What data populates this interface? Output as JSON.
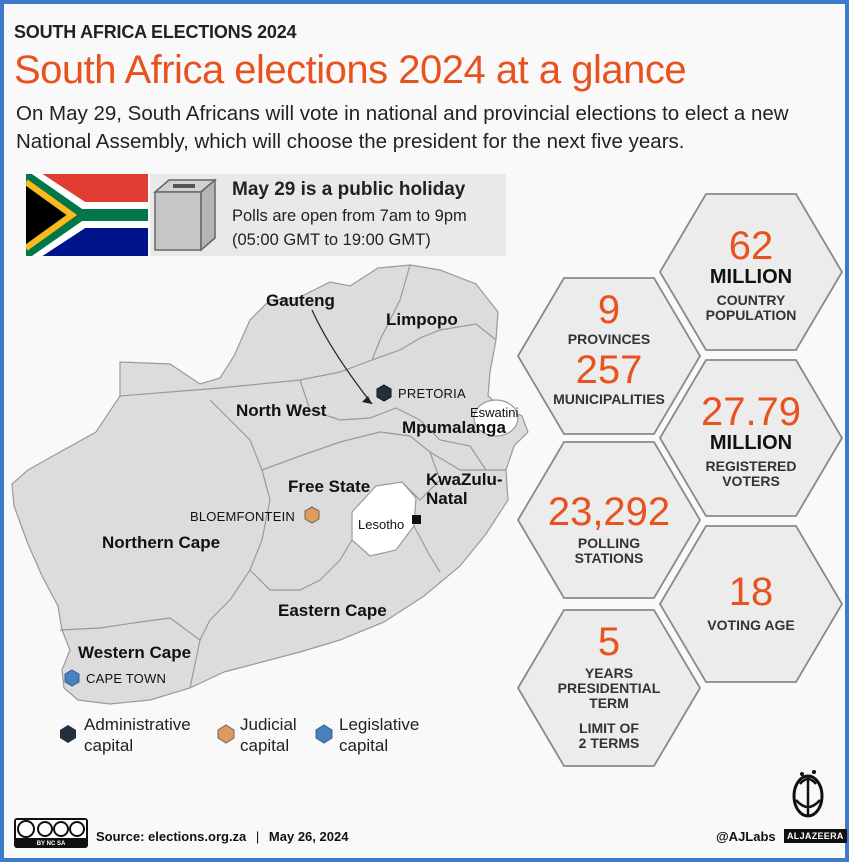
{
  "header": {
    "kicker": "SOUTH AFRICA ELECTIONS 2024",
    "title": "South Africa elections 2024 at a glance",
    "subtitle": "On May 29, South Africans will vote in national and provincial elections to elect a new National Assembly, which will choose the president for the next five years."
  },
  "holiday": {
    "title": "May 29 is a public holiday",
    "line1": "Polls are open from 7am to 9pm",
    "line2": "(05:00 GMT to 19:00 GMT)"
  },
  "map": {
    "provinces": {
      "gauteng": "Gauteng",
      "limpopo": "Limpopo",
      "north_west": "North West",
      "mpumalanga": "Mpumalanga",
      "free_state": "Free State",
      "kwazulu_natal_1": "KwaZulu-",
      "kwazulu_natal_2": "Natal",
      "northern_cape": "Northern Cape",
      "eastern_cape": "Eastern Cape",
      "western_cape": "Western Cape"
    },
    "neighbours": {
      "eswatini": "Eswatini",
      "lesotho": "Lesotho"
    },
    "capitals": {
      "pretoria": "PRETORIA",
      "bloemfontein": "BLOEMFONTEIN",
      "cape_town": "CAPE TOWN"
    },
    "colors": {
      "land": "#dcdcdc",
      "administrative": "#24303d",
      "judicial": "#e09a5c",
      "legislative": "#4a80bd"
    }
  },
  "stats": {
    "population": {
      "value": "62",
      "unit": "MILLION",
      "label1": "COUNTRY",
      "label2": "POPULATION"
    },
    "provinces": {
      "value": "9",
      "label": "PROVINCES"
    },
    "municipalities": {
      "value": "257",
      "label": "MUNICIPALITIES"
    },
    "registered": {
      "value": "27.79",
      "unit": "MILLION",
      "label1": "REGISTERED",
      "label2": "VOTERS"
    },
    "polling": {
      "value": "23,292",
      "label1": "POLLING",
      "label2": "STATIONS"
    },
    "voting_age": {
      "value": "18",
      "label": "VOTING AGE"
    },
    "term": {
      "value": "5",
      "label1": "YEARS",
      "label2": "PRESIDENTIAL",
      "label3": "TERM",
      "label4": "LIMIT OF",
      "label5": "2 TERMS"
    }
  },
  "legend": {
    "administrative_1": "Administrative",
    "administrative_2": "capital",
    "judicial_1": "Judicial",
    "judicial_2": "capital",
    "legislative_1": "Legislative",
    "legislative_2": "capital"
  },
  "footer": {
    "source_label": "Source:",
    "source": "elections.org.za",
    "separator": "|",
    "date": "May 26, 2024",
    "handle": "@AJLabs",
    "brand": "ALJAZEERA",
    "cc": "BY NC SA"
  },
  "accent_color": "#e8521f",
  "frame_color": "#3d7ac9"
}
